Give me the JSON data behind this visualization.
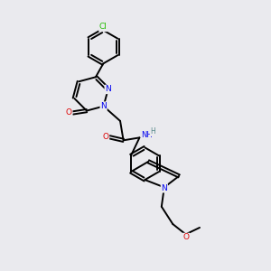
{
  "background_color": "#eaeaee",
  "atom_colors": {
    "C": "#000000",
    "N": "#0000ee",
    "O": "#dd0000",
    "Cl": "#22bb00",
    "H": "#558888"
  },
  "bond_color": "#000000",
  "bond_width": 1.4,
  "dbo": 0.055,
  "figsize": [
    3.0,
    3.0
  ],
  "dpi": 100
}
